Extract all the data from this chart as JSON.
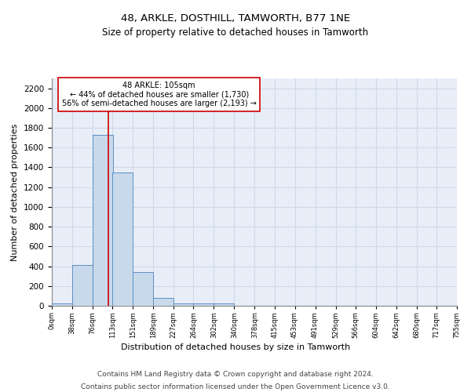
{
  "title1": "48, ARKLE, DOSTHILL, TAMWORTH, B77 1NE",
  "title2": "Size of property relative to detached houses in Tamworth",
  "xlabel": "Distribution of detached houses by size in Tamworth",
  "ylabel": "Number of detached properties",
  "bar_color": "#c9d9ec",
  "bar_edgecolor": "#5a8fc0",
  "bin_edges": [
    0,
    38,
    76,
    113,
    151,
    189,
    227,
    264,
    302,
    340,
    378,
    415,
    453,
    491,
    529,
    566,
    604,
    642,
    680,
    717,
    755
  ],
  "bar_heights": [
    20,
    410,
    1730,
    1350,
    340,
    80,
    25,
    20,
    20,
    0,
    0,
    0,
    0,
    0,
    0,
    0,
    0,
    0,
    0,
    0
  ],
  "tick_labels": [
    "0sqm",
    "38sqm",
    "76sqm",
    "113sqm",
    "151sqm",
    "189sqm",
    "227sqm",
    "264sqm",
    "302sqm",
    "340sqm",
    "378sqm",
    "415sqm",
    "453sqm",
    "491sqm",
    "529sqm",
    "566sqm",
    "604sqm",
    "642sqm",
    "680sqm",
    "717sqm",
    "755sqm"
  ],
  "property_size": 105,
  "property_label": "48 ARKLE: 105sqm",
  "pct_smaller": "44% of detached houses are smaller (1,730)",
  "pct_larger": "56% of semi-detached houses are larger (2,193)",
  "red_line_color": "#cc0000",
  "annotation_box_edgecolor": "#cc0000",
  "ylim": [
    0,
    2300
  ],
  "yticks": [
    0,
    200,
    400,
    600,
    800,
    1000,
    1200,
    1400,
    1600,
    1800,
    2000,
    2200
  ],
  "grid_color": "#d0d8e8",
  "background_color": "#e8eef8",
  "footnote1": "Contains HM Land Registry data © Crown copyright and database right 2024.",
  "footnote2": "Contains public sector information licensed under the Open Government Licence v3.0."
}
